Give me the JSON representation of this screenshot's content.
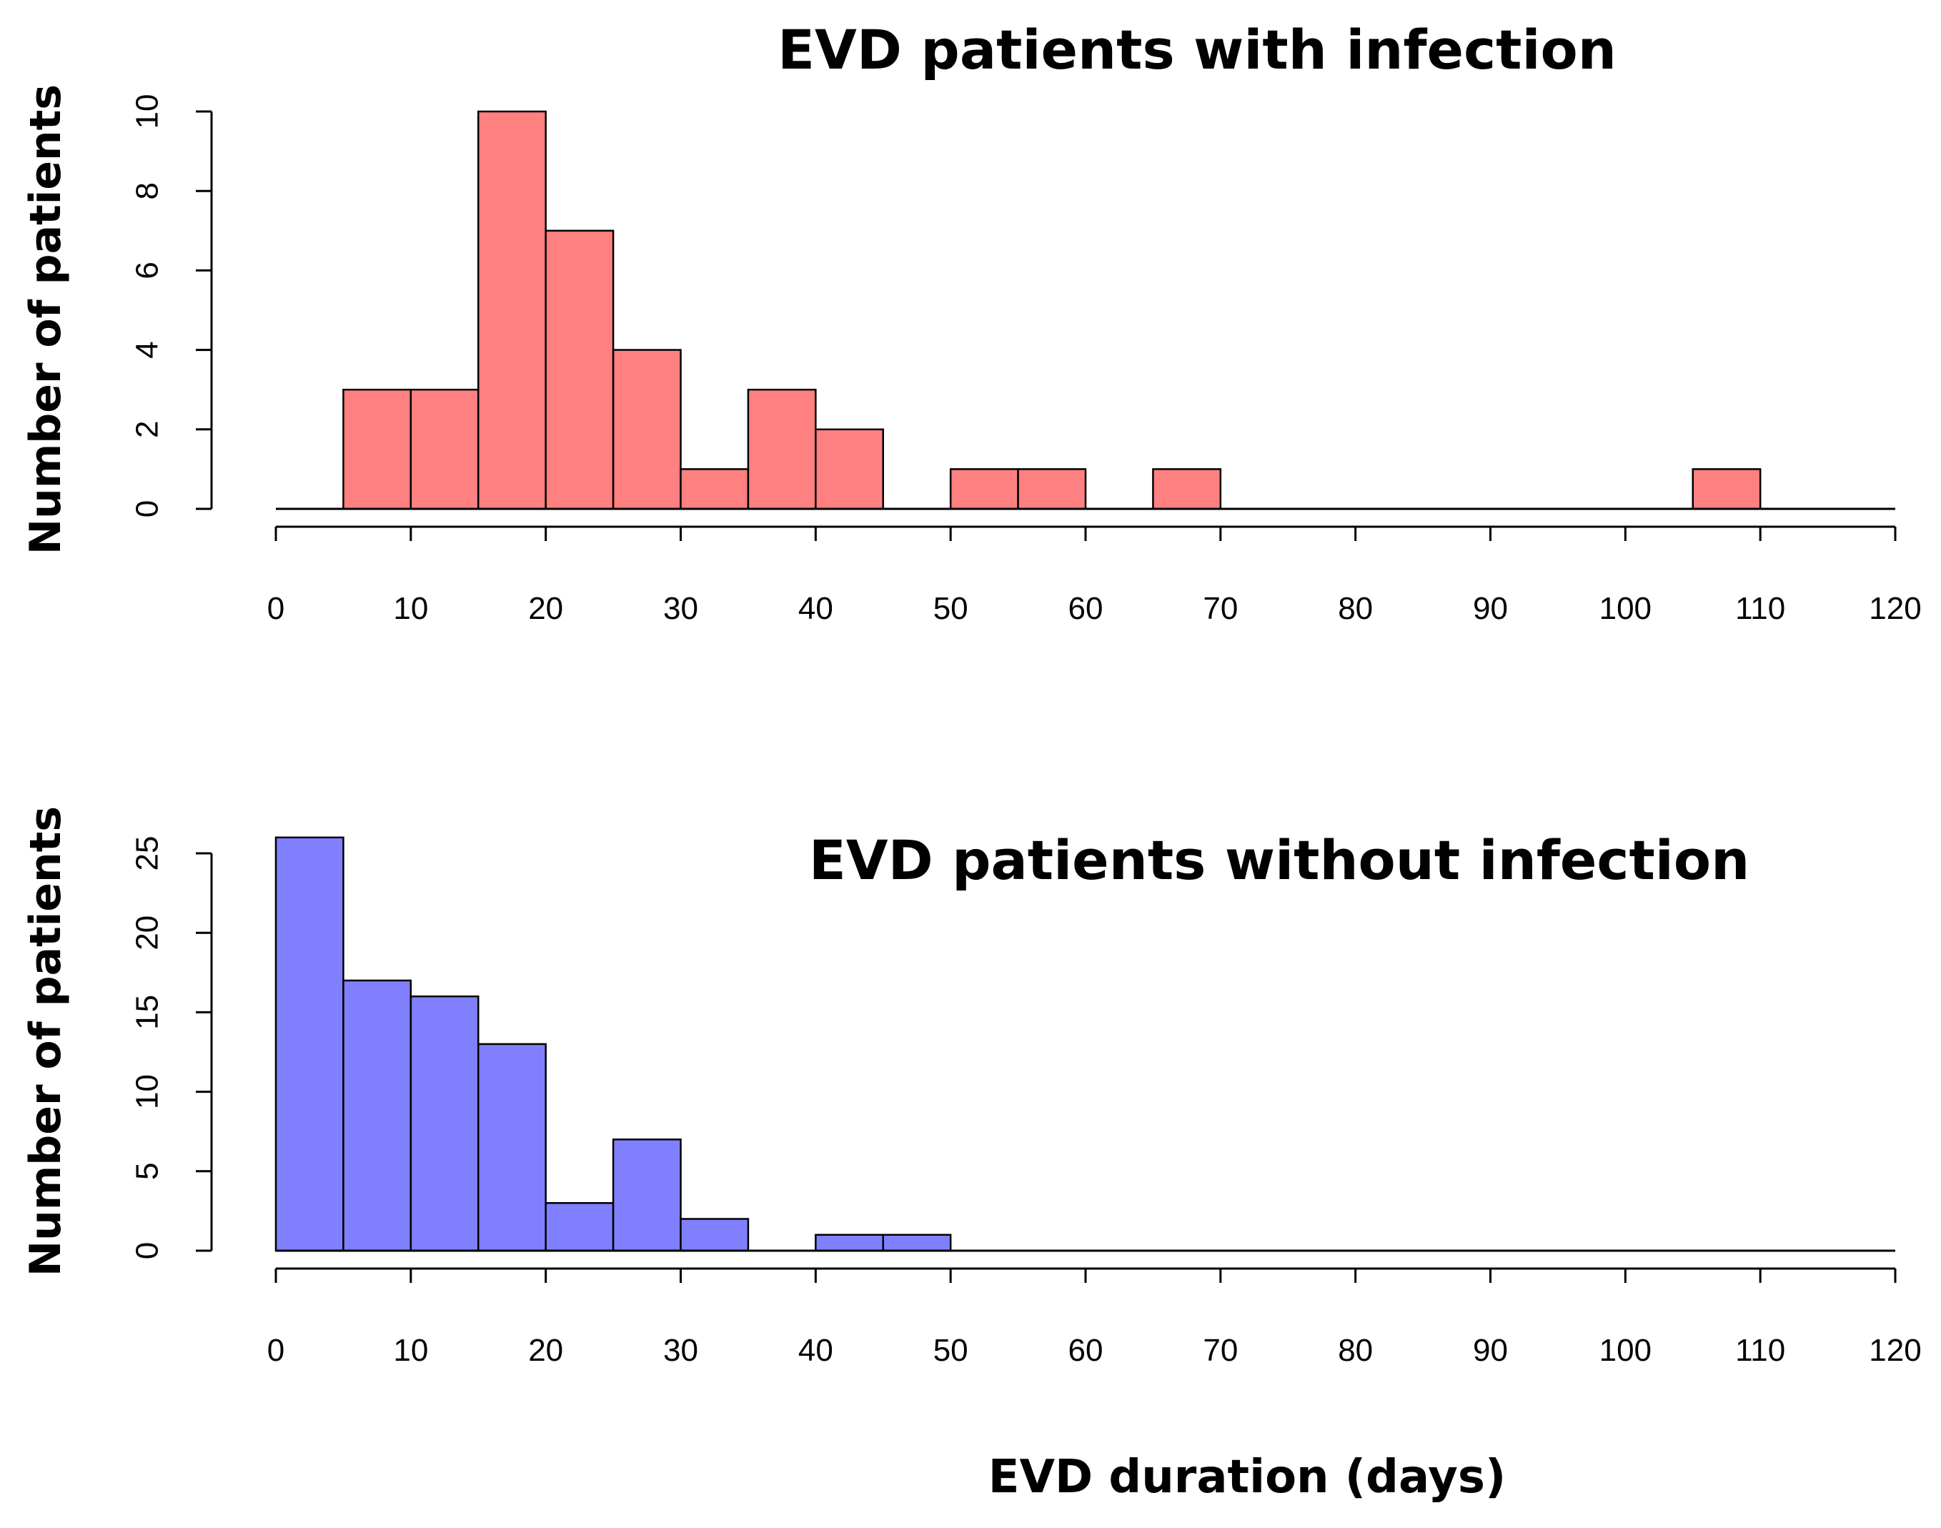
{
  "figure_xlabel": "EVD duration (days)",
  "chart_data": [
    {
      "type": "bar",
      "title": "EVD patients with infection",
      "ylabel": "Number of patients",
      "xlabel": "",
      "color": "#ff8080",
      "bin_width": 5,
      "bin_starts": [
        5,
        10,
        15,
        20,
        25,
        30,
        35,
        40,
        50,
        55,
        65,
        105
      ],
      "values": [
        3,
        3,
        10,
        7,
        4,
        1,
        3,
        2,
        1,
        1,
        1,
        1
      ],
      "xlim": [
        0,
        120
      ],
      "ylim": [
        0,
        10
      ],
      "x_ticks": [
        "0",
        "10",
        "20",
        "30",
        "40",
        "50",
        "60",
        "70",
        "80",
        "90",
        "100",
        "110",
        "120"
      ],
      "y_ticks": [
        "0",
        "2",
        "4",
        "6",
        "8",
        "10"
      ],
      "grid": false
    },
    {
      "type": "bar",
      "title": "EVD patients without infection",
      "ylabel": "Number of patients",
      "xlabel": "EVD duration (days)",
      "color": "#8080ff",
      "bin_width": 5,
      "bin_starts": [
        0,
        5,
        10,
        15,
        20,
        25,
        30,
        40,
        45
      ],
      "values": [
        26,
        17,
        16,
        13,
        3,
        7,
        2,
        1,
        1
      ],
      "xlim": [
        0,
        120
      ],
      "ylim": [
        0,
        25
      ],
      "x_ticks": [
        "0",
        "10",
        "20",
        "30",
        "40",
        "50",
        "60",
        "70",
        "80",
        "90",
        "100",
        "110",
        "120"
      ],
      "y_ticks": [
        "0",
        "5",
        "10",
        "15",
        "20",
        "25"
      ],
      "grid": false
    }
  ]
}
